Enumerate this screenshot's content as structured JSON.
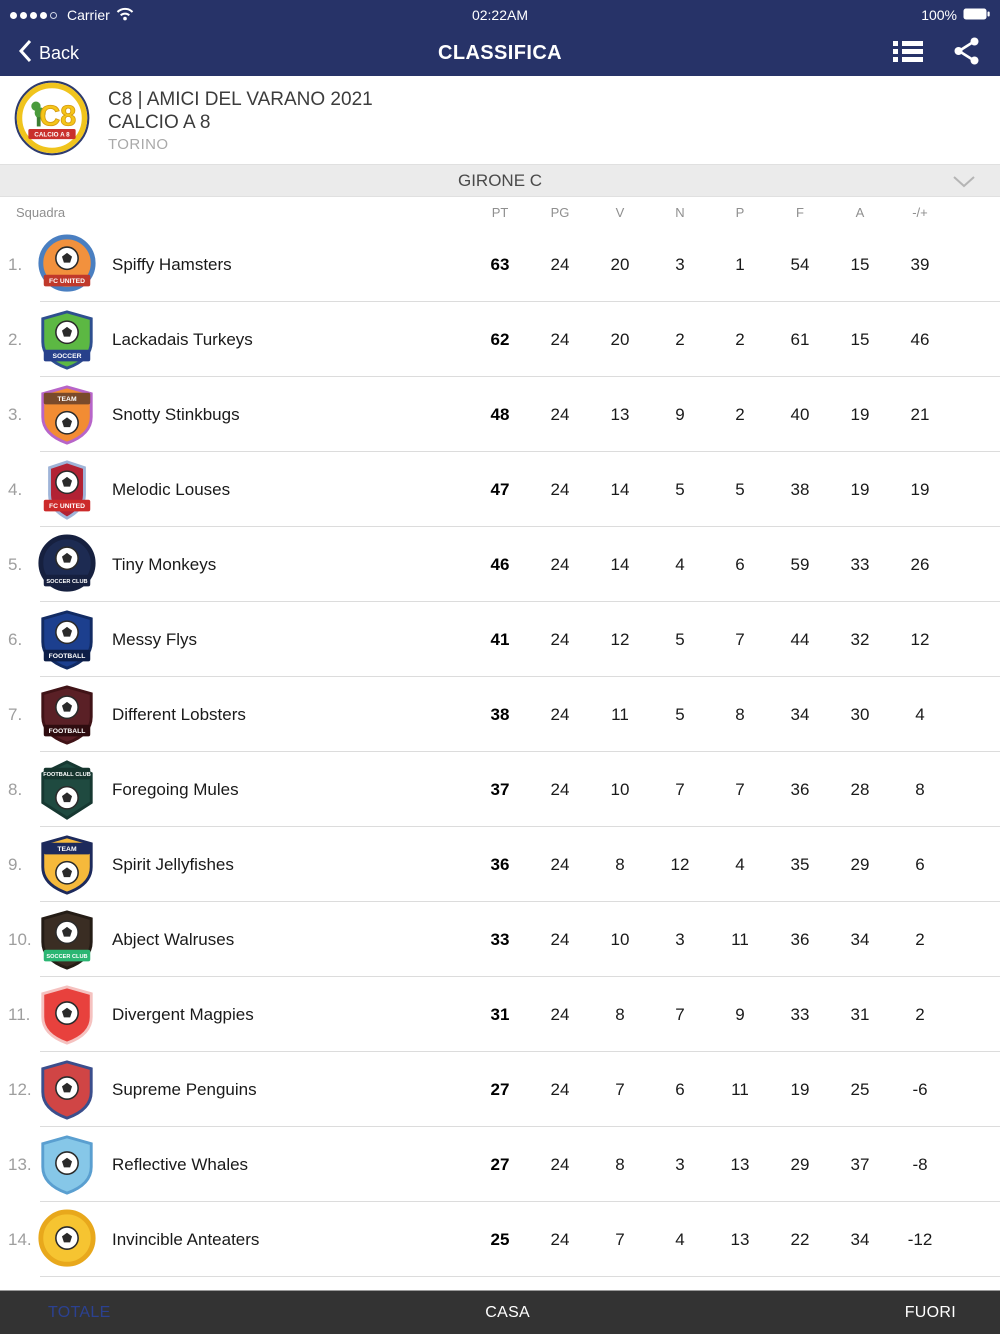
{
  "theme": {
    "navbar": "#273368",
    "tabbar": "#333333",
    "girone_bg": "#ebebeb"
  },
  "status_bar": {
    "signal_dots_filled": 4,
    "signal_dots_total": 5,
    "carrier": "Carrier",
    "time": "02:22AM",
    "battery_percent": "100%"
  },
  "nav_bar": {
    "back_label": "Back",
    "title": "CLASSIFICA"
  },
  "club_header": {
    "logo_text": "C8",
    "logo_band": "CALCIO A 8",
    "title": "C8 | AMICI DEL VARANO 2021",
    "subtitle": "CALCIO A 8",
    "city": "TORINO"
  },
  "girone_bar": {
    "label": "GIRONE C"
  },
  "table": {
    "name_header": "Squadra",
    "stat_headers": [
      "PT",
      "PG",
      "V",
      "N",
      "P",
      "F",
      "A",
      "-/+"
    ],
    "rows": [
      {
        "rank": "1.",
        "team": "Spiffy Hamsters",
        "stats": [
          63,
          24,
          20,
          3,
          1,
          54,
          15,
          39
        ],
        "logo": {
          "shape": "circle",
          "primary": "#f2913d",
          "secondary": "#4a7fc1",
          "band": "#c0392b",
          "band_text": "FC UNITED"
        }
      },
      {
        "rank": "2.",
        "team": "Lackadais Turkeys",
        "stats": [
          62,
          24,
          20,
          2,
          2,
          61,
          15,
          46
        ],
        "logo": {
          "shape": "shield",
          "primary": "#5cb843",
          "secondary": "#2e4f8f",
          "band": "#27408b",
          "band_text": "SOCCER"
        }
      },
      {
        "rank": "3.",
        "team": "Snotty Stinkbugs",
        "stats": [
          48,
          24,
          13,
          9,
          2,
          40,
          19,
          21
        ],
        "logo": {
          "shape": "shield",
          "primary": "#f28c33",
          "secondary": "#b765c9",
          "band": "#7a4a2b",
          "band_text": "TEAM",
          "band_pos": "top"
        }
      },
      {
        "rank": "4.",
        "team": "Melodic Louses",
        "stats": [
          47,
          24,
          14,
          5,
          5,
          38,
          19,
          19
        ],
        "logo": {
          "shape": "shield-narrow",
          "primary": "#b22234",
          "secondary": "#9fb4d8",
          "band": "#cc2a2a",
          "band_text": "FC UNITED"
        }
      },
      {
        "rank": "5.",
        "team": "Tiny Monkeys",
        "stats": [
          46,
          24,
          14,
          4,
          6,
          59,
          33,
          26
        ],
        "logo": {
          "shape": "circle",
          "primary": "#1d2b52",
          "secondary": "#16203f",
          "band": "#16203f",
          "band_text": "SOCCER CLUB"
        }
      },
      {
        "rank": "6.",
        "team": "Messy Flys",
        "stats": [
          41,
          24,
          12,
          5,
          7,
          44,
          32,
          12
        ],
        "logo": {
          "shape": "shield",
          "primary": "#1c3f8e",
          "secondary": "#122b63",
          "band": "#0d1e47",
          "band_text": "FOOTBALL"
        }
      },
      {
        "rank": "7.",
        "team": "Different Lobsters",
        "stats": [
          38,
          24,
          11,
          5,
          8,
          34,
          30,
          4
        ],
        "logo": {
          "shape": "shield",
          "primary": "#5a2026",
          "secondary": "#401317",
          "band": "#2e0c0f",
          "band_text": "FOOTBALL"
        }
      },
      {
        "rank": "8.",
        "team": "Foregoing Mules",
        "stats": [
          37,
          24,
          10,
          7,
          7,
          36,
          28,
          8
        ],
        "logo": {
          "shape": "pentagon",
          "primary": "#1f4a40",
          "secondary": "#163831",
          "band": "#16352e",
          "band_text": "FOOTBALL CLUB",
          "band_pos": "top"
        }
      },
      {
        "rank": "9.",
        "team": "Spirit Jellyfishes",
        "stats": [
          36,
          24,
          8,
          12,
          4,
          35,
          29,
          6
        ],
        "logo": {
          "shape": "shield",
          "primary": "#f6b93b",
          "secondary": "#1d2a5c",
          "band": "#1d2a5c",
          "band_text": "TEAM",
          "band_pos": "top"
        }
      },
      {
        "rank": "10.",
        "team": "Abject Walruses",
        "stats": [
          33,
          24,
          10,
          3,
          11,
          36,
          34,
          2
        ],
        "logo": {
          "shape": "shield",
          "primary": "#3a2d23",
          "secondary": "#241c15",
          "band": "#2bb673",
          "band_text": "SOCCER CLUB"
        }
      },
      {
        "rank": "11.",
        "team": "Divergent Magpies",
        "stats": [
          31,
          24,
          8,
          7,
          9,
          33,
          31,
          2
        ],
        "logo": {
          "shape": "shield",
          "primary": "#e8413d",
          "secondary": "#f5c2c0",
          "band": "#e8413d",
          "band_text": ""
        }
      },
      {
        "rank": "12.",
        "team": "Supreme Penguins",
        "stats": [
          27,
          24,
          7,
          6,
          11,
          19,
          25,
          -6
        ],
        "logo": {
          "shape": "shield",
          "primary": "#d04545",
          "secondary": "#3b4e8c",
          "band": "#3b4e8c",
          "band_text": ""
        }
      },
      {
        "rank": "13.",
        "team": "Reflective Whales",
        "stats": [
          27,
          24,
          8,
          3,
          13,
          29,
          37,
          -8
        ],
        "logo": {
          "shape": "shield",
          "primary": "#86c7e8",
          "secondary": "#5a9fd0",
          "band": "#2b5fb0",
          "band_text": ""
        }
      },
      {
        "rank": "14.",
        "team": "Invincible Anteaters",
        "stats": [
          25,
          24,
          7,
          4,
          13,
          22,
          34,
          -12
        ],
        "logo": {
          "shape": "circle",
          "primary": "#f6c431",
          "secondary": "#e8a81c",
          "band": "#d03a28",
          "band_text": ""
        }
      }
    ]
  },
  "tab_bar": {
    "active_color": "#2b4191",
    "inactive_color": "#ffffff",
    "tabs": [
      {
        "label": "TOTALE",
        "active": true
      },
      {
        "label": "CASA",
        "active": false
      },
      {
        "label": "FUORI",
        "active": false
      }
    ]
  }
}
